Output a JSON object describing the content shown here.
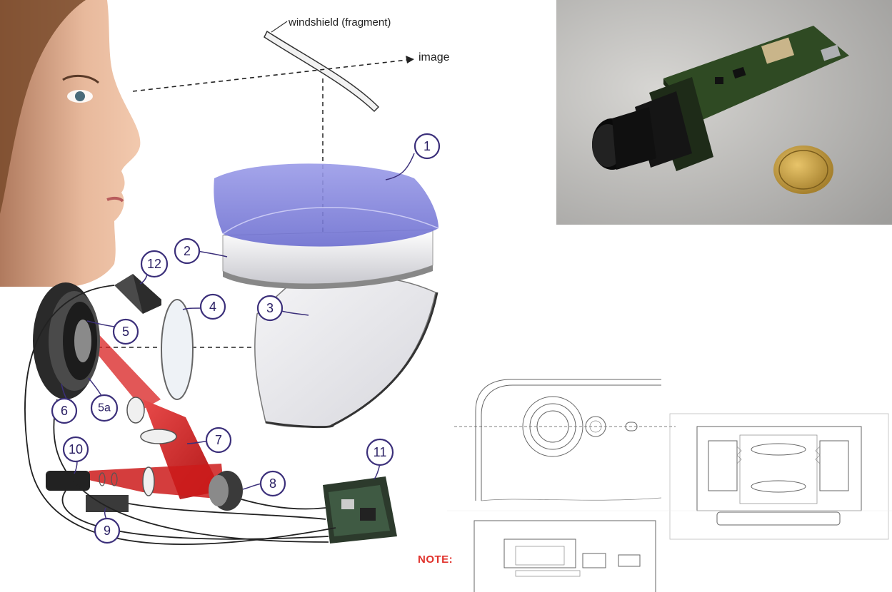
{
  "diagram": {
    "windshield_label": "windshield (fragment)",
    "image_label": "image",
    "callouts": [
      "1",
      "2",
      "3",
      "4",
      "5",
      "5a",
      "6",
      "7",
      "8",
      "9",
      "10",
      "11",
      "12"
    ],
    "note_label": "NOTE:",
    "colors": {
      "combiner": "#7f7fd9",
      "laser": "#d81f1f",
      "callout": "#3b2f7a"
    }
  },
  "photo": {
    "subject": "camera module on circuit board with coin"
  },
  "patent_drawing": {
    "label": "patent line drawing of camera lens assembly"
  }
}
